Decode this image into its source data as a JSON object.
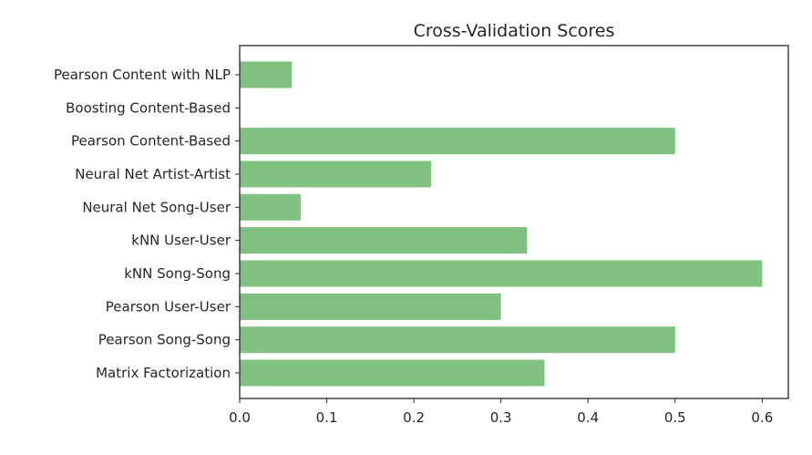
{
  "chart_data": {
    "type": "bar",
    "orientation": "horizontal",
    "title": "Cross-Validation Scores",
    "xlabel": "",
    "ylabel": "",
    "categories": [
      "Pearson Content with NLP",
      "Boosting Content-Based",
      "Pearson Content-Based",
      "Neural Net Artist-Artist",
      "Neural Net Song-User",
      "kNN User-User",
      "kNN Song-Song",
      "Pearson User-User",
      "Pearson Song-Song",
      "Matrix Factorization"
    ],
    "values": [
      0.06,
      0.0,
      0.5,
      0.22,
      0.07,
      0.33,
      0.6,
      0.3,
      0.5,
      0.35
    ],
    "xlim": [
      0.0,
      0.63
    ],
    "xticks": [
      "0.0",
      "0.1",
      "0.2",
      "0.3",
      "0.4",
      "0.5",
      "0.6"
    ],
    "bar_color": "#80c080",
    "grid": false,
    "legend": "none"
  }
}
